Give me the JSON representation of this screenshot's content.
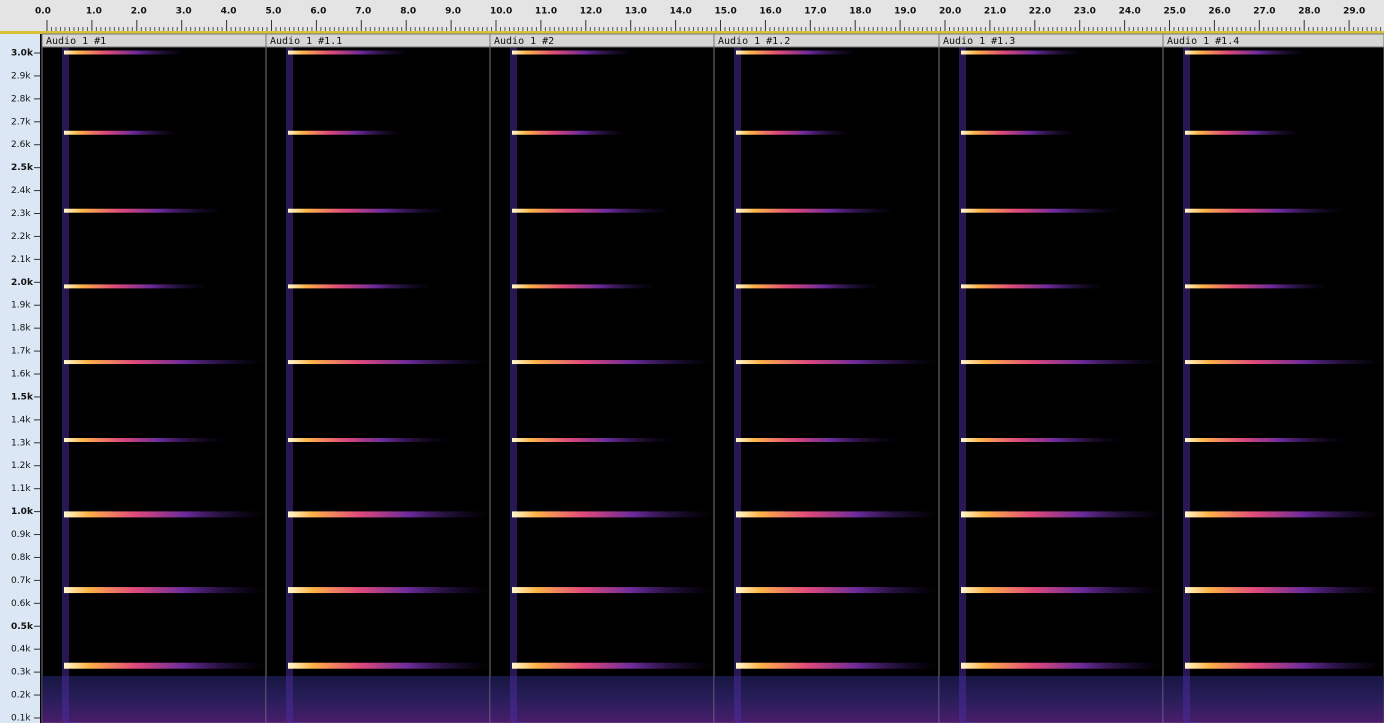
{
  "ruler": {
    "ticks": [
      "0.0",
      "1.0",
      "2.0",
      "3.0",
      "4.0",
      "5.0",
      "6.0",
      "7.0",
      "8.0",
      "9.0",
      "10.0",
      "11.0",
      "12.0",
      "13.0",
      "14.0",
      "15.0",
      "16.0",
      "17.0",
      "18.0",
      "19.0",
      "20.0",
      "21.0",
      "22.0",
      "23.0",
      "24.0",
      "25.0",
      "26.0",
      "27.0",
      "28.0",
      "29.0"
    ]
  },
  "clips": [
    {
      "name": "Audio 1 #1"
    },
    {
      "name": "Audio 1 #1.1"
    },
    {
      "name": "Audio 1 #2"
    },
    {
      "name": "Audio 1 #1.2"
    },
    {
      "name": "Audio 1 #1.3"
    },
    {
      "name": "Audio 1 #1.4"
    }
  ],
  "frequency_axis": {
    "labels": [
      "3.0k",
      "2.9k",
      "2.8k",
      "2.7k",
      "2.6k",
      "2.5k",
      "2.4k",
      "2.3k",
      "2.2k",
      "2.1k",
      "2.0k",
      "1.9k",
      "1.8k",
      "1.7k",
      "1.6k",
      "1.5k",
      "1.4k",
      "1.3k",
      "1.2k",
      "1.1k",
      "1.0k",
      "0.9k",
      "0.8k",
      "0.7k",
      "0.6k",
      "0.5k",
      "0.4k",
      "0.3k",
      "0.2k",
      "0.1k"
    ]
  }
}
